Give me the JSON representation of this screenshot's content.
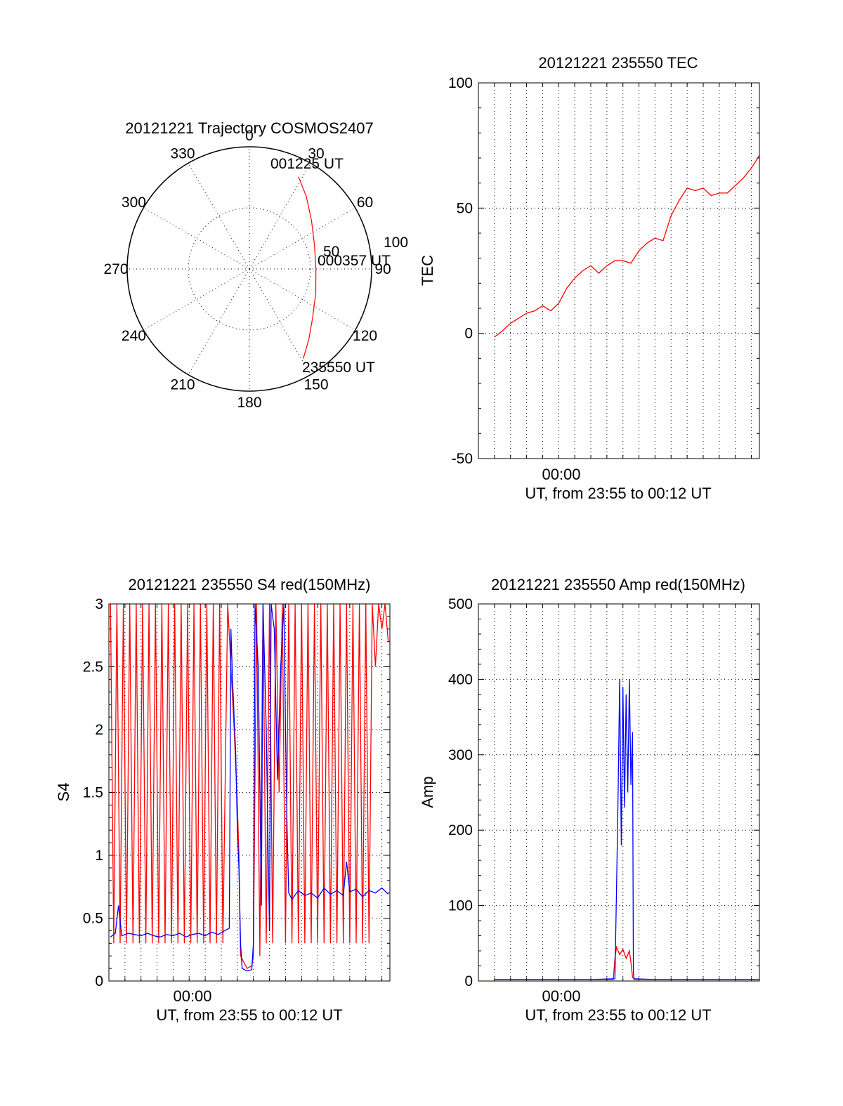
{
  "colors": {
    "red": "#ff0000",
    "blue": "#0000ff",
    "axis": "#000000",
    "background": "#ffffff"
  },
  "chart_data": [
    {
      "type": "polar",
      "title": "20121221 Trajectory COSMOS2407",
      "angle_labels": [
        "0",
        "30",
        "60",
        "90",
        "120",
        "150",
        "180",
        "210",
        "240",
        "270",
        "300",
        "330"
      ],
      "radius_labels": [
        "50",
        "100"
      ],
      "start_label": "235550 UT",
      "mid_label": "000357 UT",
      "end_label": "001225 UT",
      "trajectory": [
        {
          "azimuth": 149,
          "elevation": 13
        },
        {
          "azimuth": 140,
          "elevation": 22
        },
        {
          "azimuth": 128,
          "elevation": 31
        },
        {
          "azimuth": 110,
          "elevation": 38
        },
        {
          "azimuth": 90,
          "elevation": 41
        },
        {
          "azimuth": 70,
          "elevation": 39
        },
        {
          "azimuth": 52,
          "elevation": 32
        },
        {
          "azimuth": 38,
          "elevation": 22
        },
        {
          "azimuth": 28,
          "elevation": 13
        }
      ]
    },
    {
      "type": "line",
      "title": "20121221 235550 TEC",
      "ylabel": "TEC",
      "xlabel": "UT, from 23:55 to 00:12 UT",
      "x_tick_labels": [
        {
          "t": 0,
          "label": "00:00"
        }
      ],
      "xlim": [
        -5,
        12.5
      ],
      "ylim": [
        -50,
        100
      ],
      "y_ticks": [
        -50,
        0,
        50,
        100
      ],
      "series": [
        {
          "color": "#ff0000",
          "points": [
            [
              -4.0,
              -1.5
            ],
            [
              -3.5,
              1
            ],
            [
              -3.0,
              4
            ],
            [
              -2.5,
              6
            ],
            [
              -2.0,
              8
            ],
            [
              -1.5,
              9
            ],
            [
              -1.0,
              11
            ],
            [
              -0.5,
              9
            ],
            [
              0.0,
              12
            ],
            [
              0.5,
              18
            ],
            [
              1.0,
              22
            ],
            [
              1.5,
              25
            ],
            [
              2.0,
              27
            ],
            [
              2.5,
              24
            ],
            [
              3.0,
              27
            ],
            [
              3.5,
              29
            ],
            [
              4.0,
              29
            ],
            [
              4.5,
              28
            ],
            [
              5.0,
              33
            ],
            [
              5.5,
              36
            ],
            [
              6.0,
              38
            ],
            [
              6.5,
              37
            ],
            [
              7.0,
              47
            ],
            [
              7.5,
              53
            ],
            [
              8.0,
              58
            ],
            [
              8.5,
              57
            ],
            [
              9.0,
              58
            ],
            [
              9.5,
              55
            ],
            [
              10.0,
              56
            ],
            [
              10.5,
              56
            ],
            [
              11.0,
              59
            ],
            [
              11.5,
              62
            ],
            [
              12.0,
              66
            ],
            [
              12.5,
              71
            ]
          ]
        }
      ]
    },
    {
      "type": "line",
      "title": "20121221 235550 S4 red(150MHz)",
      "ylabel": "S4",
      "xlabel": "UT, from 23:55 to 00:12 UT",
      "x_tick_labels": [
        {
          "t": 0,
          "label": "00:00"
        }
      ],
      "xlim": [
        -5,
        12.5
      ],
      "ylim": [
        0,
        3
      ],
      "y_ticks": [
        0,
        0.5,
        1,
        1.5,
        2,
        2.5,
        3
      ],
      "y_tick_labels": [
        "0",
        "0.5",
        "1",
        "1.5",
        "2",
        "2.5",
        "3"
      ],
      "series": [
        {
          "color": "#ff0000",
          "points": [
            [
              -4.9,
              3.0
            ],
            [
              -4.7,
              0.3
            ],
            [
              -4.5,
              3.0
            ],
            [
              -4.3,
              0.3
            ],
            [
              -4.1,
              3.0
            ],
            [
              -3.9,
              0.3
            ],
            [
              -3.7,
              3.0
            ],
            [
              -3.5,
              0.3
            ],
            [
              -3.3,
              3.0
            ],
            [
              -3.1,
              0.3
            ],
            [
              -2.9,
              3.0
            ],
            [
              -2.7,
              0.3
            ],
            [
              -2.5,
              3.0
            ],
            [
              -2.3,
              0.3
            ],
            [
              -2.1,
              3.0
            ],
            [
              -1.9,
              0.3
            ],
            [
              -1.7,
              3.0
            ],
            [
              -1.5,
              0.3
            ],
            [
              -1.3,
              3.0
            ],
            [
              -1.1,
              0.3
            ],
            [
              -0.9,
              3.0
            ],
            [
              -0.7,
              0.3
            ],
            [
              -0.5,
              3.0
            ],
            [
              -0.3,
              0.3
            ],
            [
              -0.1,
              3.0
            ],
            [
              0.1,
              0.3
            ],
            [
              0.3,
              3.0
            ],
            [
              0.5,
              0.3
            ],
            [
              0.7,
              3.0
            ],
            [
              0.9,
              0.3
            ],
            [
              1.1,
              3.0
            ],
            [
              1.3,
              0.3
            ],
            [
              1.5,
              3.0
            ],
            [
              1.7,
              0.3
            ],
            [
              1.9,
              3.0
            ],
            [
              2.1,
              0.3
            ],
            [
              2.4,
              3.0
            ],
            [
              2.6,
              2.5
            ],
            [
              2.8,
              2.0
            ],
            [
              3.0,
              1.4
            ],
            [
              3.1,
              1.0
            ],
            [
              3.2,
              0.2
            ],
            [
              3.4,
              0.15
            ],
            [
              3.6,
              0.1
            ],
            [
              3.9,
              0.12
            ],
            [
              4.0,
              0.2
            ],
            [
              4.2,
              3.0
            ],
            [
              4.4,
              0.2
            ],
            [
              4.6,
              3.0
            ],
            [
              4.8,
              0.3
            ],
            [
              5.0,
              3.0
            ],
            [
              5.2,
              0.3
            ],
            [
              5.4,
              3.0
            ],
            [
              5.6,
              1.5
            ],
            [
              5.8,
              3.0
            ],
            [
              6.0,
              0.3
            ],
            [
              6.2,
              3.0
            ],
            [
              6.4,
              0.3
            ],
            [
              6.6,
              3.0
            ],
            [
              6.8,
              0.3
            ],
            [
              7.0,
              3.0
            ],
            [
              7.2,
              0.3
            ],
            [
              7.4,
              3.0
            ],
            [
              7.6,
              0.3
            ],
            [
              7.8,
              3.0
            ],
            [
              8.0,
              0.3
            ],
            [
              8.2,
              3.0
            ],
            [
              8.4,
              0.3
            ],
            [
              8.6,
              3.0
            ],
            [
              8.8,
              0.3
            ],
            [
              9.0,
              3.0
            ],
            [
              9.2,
              0.3
            ],
            [
              9.4,
              3.0
            ],
            [
              9.6,
              0.3
            ],
            [
              9.8,
              3.0
            ],
            [
              10.0,
              0.3
            ],
            [
              10.2,
              3.0
            ],
            [
              10.4,
              0.3
            ],
            [
              10.6,
              3.0
            ],
            [
              10.8,
              0.3
            ],
            [
              11.0,
              3.0
            ],
            [
              11.2,
              0.3
            ],
            [
              11.4,
              3.0
            ],
            [
              11.6,
              2.5
            ],
            [
              11.8,
              3.0
            ],
            [
              12.0,
              2.8
            ],
            [
              12.2,
              3.0
            ],
            [
              12.4,
              2.7
            ]
          ]
        },
        {
          "color": "#0000ff",
          "points": [
            [
              -4.9,
              0.35
            ],
            [
              -4.6,
              0.38
            ],
            [
              -4.4,
              0.6
            ],
            [
              -4.2,
              0.36
            ],
            [
              -3.8,
              0.38
            ],
            [
              -3.4,
              0.37
            ],
            [
              -3.0,
              0.36
            ],
            [
              -2.6,
              0.38
            ],
            [
              -2.2,
              0.36
            ],
            [
              -1.8,
              0.35
            ],
            [
              -1.4,
              0.37
            ],
            [
              -1.0,
              0.36
            ],
            [
              -0.6,
              0.38
            ],
            [
              -0.2,
              0.35
            ],
            [
              0.2,
              0.37
            ],
            [
              0.6,
              0.38
            ],
            [
              1.0,
              0.36
            ],
            [
              1.4,
              0.39
            ],
            [
              1.8,
              0.37
            ],
            [
              2.2,
              0.4
            ],
            [
              2.5,
              0.42
            ],
            [
              2.6,
              2.8
            ],
            [
              2.7,
              2.4
            ],
            [
              2.9,
              1.8
            ],
            [
              3.0,
              1.2
            ],
            [
              3.1,
              0.9
            ],
            [
              3.2,
              0.3
            ],
            [
              3.3,
              0.1
            ],
            [
              3.6,
              0.08
            ],
            [
              3.9,
              0.09
            ],
            [
              4.0,
              0.3
            ],
            [
              4.1,
              3.0
            ],
            [
              4.3,
              2.5
            ],
            [
              4.5,
              0.6
            ],
            [
              4.6,
              3.0
            ],
            [
              4.8,
              2.0
            ],
            [
              5.0,
              0.4
            ],
            [
              5.1,
              3.0
            ],
            [
              5.3,
              2.8
            ],
            [
              5.5,
              1.6
            ],
            [
              5.7,
              2.5
            ],
            [
              5.9,
              3.0
            ],
            [
              6.0,
              2.0
            ],
            [
              6.1,
              1.2
            ],
            [
              6.2,
              0.7
            ],
            [
              6.4,
              0.65
            ],
            [
              6.8,
              0.72
            ],
            [
              7.2,
              0.68
            ],
            [
              7.6,
              0.7
            ],
            [
              8.0,
              0.66
            ],
            [
              8.4,
              0.74
            ],
            [
              8.8,
              0.69
            ],
            [
              9.2,
              0.72
            ],
            [
              9.6,
              0.68
            ],
            [
              9.8,
              0.95
            ],
            [
              10.0,
              0.71
            ],
            [
              10.4,
              0.73
            ],
            [
              10.8,
              0.67
            ],
            [
              11.2,
              0.72
            ],
            [
              11.6,
              0.7
            ],
            [
              12.0,
              0.74
            ],
            [
              12.4,
              0.69
            ]
          ]
        }
      ]
    },
    {
      "type": "line",
      "title": "20121221 235550 Amp red(150MHz)",
      "ylabel": "Amp",
      "xlabel": "UT, from 23:55 to 00:12 UT",
      "x_tick_labels": [
        {
          "t": 0,
          "label": "00:00"
        }
      ],
      "xlim": [
        -5,
        12.5
      ],
      "ylim": [
        0,
        500
      ],
      "y_ticks": [
        0,
        100,
        200,
        300,
        400,
        500
      ],
      "series": [
        {
          "color": "#ff0000",
          "points": [
            [
              -4.0,
              2
            ],
            [
              0.0,
              2
            ],
            [
              3.4,
              2
            ],
            [
              3.5,
              30
            ],
            [
              3.6,
              45
            ],
            [
              3.8,
              35
            ],
            [
              4.0,
              42
            ],
            [
              4.2,
              30
            ],
            [
              4.4,
              40
            ],
            [
              4.5,
              25
            ],
            [
              4.6,
              5
            ],
            [
              4.7,
              2
            ],
            [
              12.5,
              2
            ]
          ]
        },
        {
          "color": "#0000ff",
          "points": [
            [
              -4.0,
              2
            ],
            [
              -2.0,
              2
            ],
            [
              0.0,
              2
            ],
            [
              2.0,
              2
            ],
            [
              3.5,
              3
            ],
            [
              3.6,
              120
            ],
            [
              3.7,
              250
            ],
            [
              3.8,
              400
            ],
            [
              3.9,
              180
            ],
            [
              4.0,
              390
            ],
            [
              4.1,
              230
            ],
            [
              4.2,
              380
            ],
            [
              4.3,
              250
            ],
            [
              4.4,
              400
            ],
            [
              4.5,
              260
            ],
            [
              4.6,
              330
            ],
            [
              4.65,
              10
            ],
            [
              4.7,
              3
            ],
            [
              6.0,
              2
            ],
            [
              8.0,
              2
            ],
            [
              10.0,
              2
            ],
            [
              12.5,
              2
            ]
          ]
        }
      ]
    }
  ]
}
